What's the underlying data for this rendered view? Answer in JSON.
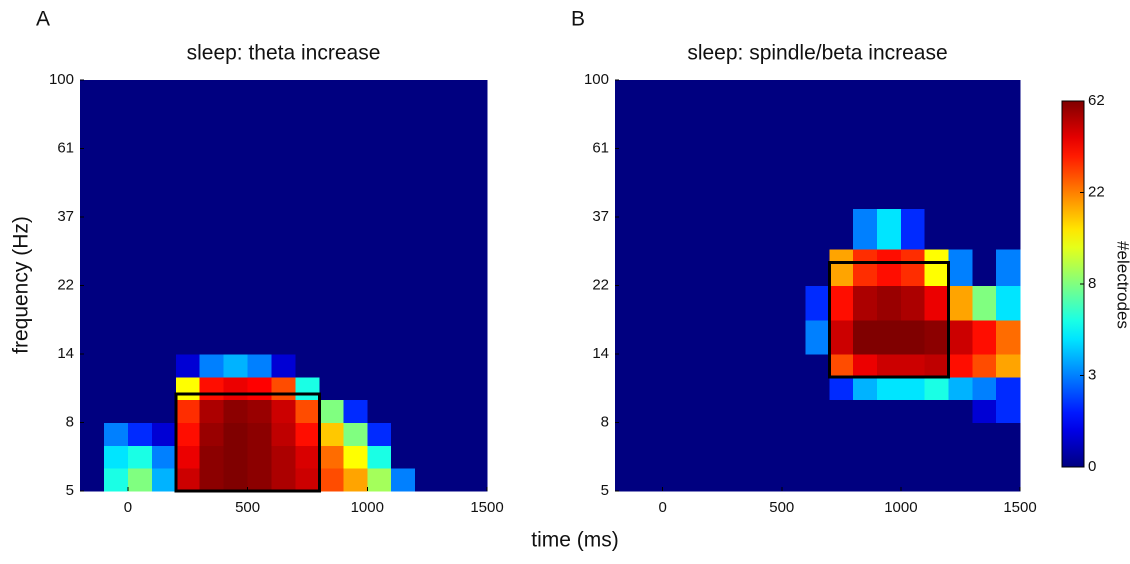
{
  "chart_data": [
    {
      "type": "heatmap",
      "panel_label": "A",
      "title": "sleep: theta increase",
      "x_bins": [
        -200,
        -100,
        0,
        100,
        200,
        300,
        400,
        500,
        600,
        700,
        800,
        900,
        1000,
        1100,
        1200,
        1300,
        1400,
        1500
      ],
      "y_bins": [
        5,
        6,
        7,
        8,
        10,
        12,
        14,
        18,
        22,
        30,
        40,
        61,
        100
      ],
      "values": [
        [
          0,
          6,
          8,
          4,
          50,
          60,
          62,
          60,
          55,
          50,
          30,
          20,
          10,
          3,
          0,
          0,
          0
        ],
        [
          0,
          5,
          6,
          3,
          45,
          60,
          62,
          60,
          55,
          48,
          25,
          15,
          6,
          0,
          0,
          0,
          0
        ],
        [
          0,
          3,
          2,
          1,
          40,
          58,
          62,
          60,
          52,
          40,
          18,
          8,
          2,
          0,
          0,
          0,
          0
        ],
        [
          0,
          0,
          0,
          0,
          35,
          55,
          60,
          58,
          50,
          30,
          8,
          2,
          0,
          0,
          0,
          0,
          0
        ],
        [
          0,
          0,
          0,
          0,
          15,
          40,
          45,
          42,
          30,
          6,
          0,
          0,
          0,
          0,
          0,
          0,
          0
        ],
        [
          0,
          0,
          0,
          0,
          1,
          3,
          4,
          3,
          1,
          0,
          0,
          0,
          0,
          0,
          0,
          0,
          0
        ],
        [
          0,
          0,
          0,
          0,
          0,
          0,
          0,
          0,
          0,
          0,
          0,
          0,
          0,
          0,
          0,
          0,
          0
        ],
        [
          0,
          0,
          0,
          0,
          0,
          0,
          0,
          0,
          0,
          0,
          0,
          0,
          0,
          0,
          0,
          0,
          0
        ],
        [
          0,
          0,
          0,
          0,
          0,
          0,
          0,
          0,
          0,
          0,
          0,
          0,
          0,
          0,
          0,
          0,
          0
        ],
        [
          0,
          0,
          0,
          0,
          0,
          0,
          0,
          0,
          0,
          0,
          0,
          0,
          0,
          0,
          0,
          0,
          0
        ],
        [
          0,
          0,
          0,
          0,
          0,
          0,
          0,
          0,
          0,
          0,
          0,
          0,
          0,
          0,
          0,
          0,
          0
        ],
        [
          0,
          0,
          0,
          0,
          0,
          0,
          0,
          0,
          0,
          0,
          0,
          0,
          0,
          0,
          0,
          0,
          0
        ]
      ],
      "box": {
        "x": [
          200,
          800
        ],
        "y": [
          5,
          10.5
        ]
      },
      "xlim": [
        -200,
        1500
      ],
      "xticks": [
        0,
        500,
        1000,
        1500
      ],
      "ylim": [
        5,
        100
      ],
      "yticks": [
        5,
        8,
        14,
        22,
        37,
        61,
        100
      ]
    },
    {
      "type": "heatmap",
      "panel_label": "B",
      "title": "sleep: spindle/beta increase",
      "x_bins": [
        -200,
        -100,
        0,
        100,
        200,
        300,
        400,
        500,
        600,
        700,
        800,
        900,
        1000,
        1100,
        1200,
        1300,
        1400,
        1500
      ],
      "y_bins": [
        5,
        6,
        7,
        8,
        10,
        12,
        14,
        18,
        22,
        30,
        40,
        61,
        100
      ],
      "values": [
        [
          0,
          0,
          0,
          0,
          0,
          0,
          0,
          0,
          0,
          0,
          0,
          0,
          0,
          0,
          0,
          0,
          0
        ],
        [
          0,
          0,
          0,
          0,
          0,
          0,
          0,
          0,
          0,
          0,
          0,
          0,
          0,
          0,
          0,
          0,
          0
        ],
        [
          0,
          0,
          0,
          0,
          0,
          0,
          0,
          0,
          0,
          0,
          0,
          0,
          0,
          0,
          0,
          0,
          0
        ],
        [
          0,
          0,
          0,
          0,
          0,
          0,
          0,
          0,
          0,
          0,
          0,
          0,
          0,
          0,
          0,
          1,
          2
        ],
        [
          0,
          0,
          0,
          0,
          0,
          0,
          0,
          0,
          0,
          2,
          4,
          5,
          5,
          6,
          4,
          3,
          2
        ],
        [
          0,
          0,
          0,
          0,
          0,
          0,
          0,
          0,
          0,
          30,
          45,
          50,
          50,
          52,
          40,
          30,
          20
        ],
        [
          0,
          0,
          0,
          0,
          0,
          0,
          0,
          0,
          3,
          50,
          62,
          62,
          62,
          60,
          50,
          40,
          25
        ],
        [
          0,
          0,
          0,
          0,
          0,
          0,
          0,
          0,
          2,
          40,
          55,
          58,
          55,
          45,
          20,
          8,
          5
        ],
        [
          0,
          0,
          0,
          0,
          0,
          0,
          0,
          0,
          0,
          20,
          35,
          40,
          35,
          15,
          3,
          0,
          3
        ],
        [
          0,
          0,
          0,
          0,
          0,
          0,
          0,
          0,
          0,
          0,
          3,
          5,
          2,
          0,
          0,
          0,
          0
        ],
        [
          0,
          0,
          0,
          0,
          0,
          0,
          0,
          0,
          0,
          0,
          0,
          0,
          0,
          0,
          0,
          0,
          0
        ],
        [
          0,
          0,
          0,
          0,
          0,
          0,
          0,
          0,
          0,
          0,
          0,
          0,
          0,
          0,
          0,
          0,
          0
        ]
      ],
      "box": {
        "x": [
          700,
          1200
        ],
        "y": [
          12,
          27
        ]
      },
      "xlim": [
        -200,
        1500
      ],
      "xticks": [
        0,
        500,
        1000,
        1500
      ],
      "ylim": [
        5,
        100
      ],
      "yticks": [
        5,
        8,
        14,
        22,
        37,
        61,
        100
      ]
    }
  ],
  "x_label": "time (ms)",
  "y_label": "frequency (Hz)",
  "colorbar": {
    "label": "#electrodes",
    "colormap": "jet",
    "lim": [
      0,
      62
    ],
    "ticks": [
      0,
      3,
      8,
      22,
      62
    ]
  }
}
